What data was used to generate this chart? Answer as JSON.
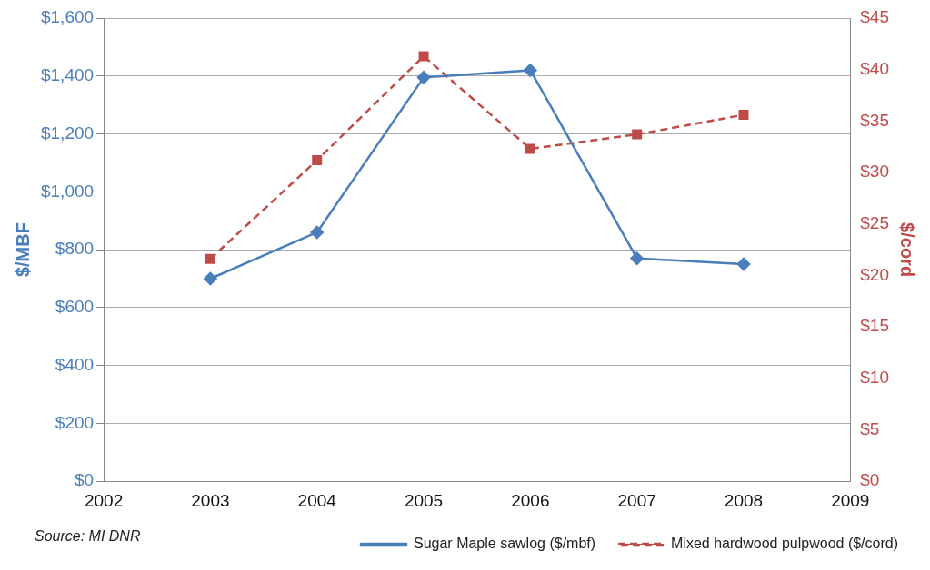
{
  "chart_data": {
    "type": "line",
    "ylabel": "$/MBF",
    "y2label": "$/cord",
    "x": [
      2003,
      2004,
      2005,
      2006,
      2007,
      2008
    ],
    "xlim": [
      2002,
      2009
    ],
    "xticks": [
      2002,
      2003,
      2004,
      2005,
      2006,
      2007,
      2008,
      2009
    ],
    "ylim": [
      0,
      1600
    ],
    "yticks": [
      {
        "value": 0,
        "label": "$0"
      },
      {
        "value": 200,
        "label": "$200"
      },
      {
        "value": 400,
        "label": "$400"
      },
      {
        "value": 600,
        "label": "$600"
      },
      {
        "value": 800,
        "label": "$800"
      },
      {
        "value": 1000,
        "label": "$1,000"
      },
      {
        "value": 1200,
        "label": "$1,200"
      },
      {
        "value": 1400,
        "label": "$1,400"
      },
      {
        "value": 1600,
        "label": "$1,600"
      }
    ],
    "y2lim": [
      0,
      45
    ],
    "y2ticks": [
      {
        "value": 0,
        "label": "$0"
      },
      {
        "value": 5,
        "label": "$5"
      },
      {
        "value": 10,
        "label": "$10"
      },
      {
        "value": 15,
        "label": "$15"
      },
      {
        "value": 20,
        "label": "$20"
      },
      {
        "value": 25,
        "label": "$25"
      },
      {
        "value": 30,
        "label": "$30"
      },
      {
        "value": 35,
        "label": "$35"
      },
      {
        "value": 40,
        "label": "$40"
      },
      {
        "value": 45,
        "label": "$45"
      }
    ],
    "series": [
      {
        "name": "Sugar Maple sawlog ($/mbf)",
        "color": "#4a7ebb",
        "values": [
          700,
          860,
          1395,
          1420,
          770,
          750
        ],
        "marker": "diamond",
        "line_style": "solid"
      },
      {
        "name": "Mixed hardwood pulpwood ($/cord)",
        "color": "#be4b48",
        "values": [
          21.6,
          31.2,
          41.3,
          32.3,
          33.7,
          35.6
        ],
        "axis": "y2",
        "marker": "square",
        "line_style": "dashed"
      }
    ],
    "grid": "y",
    "legend": "bottom",
    "annotations": [
      "Source: MI DNR"
    ]
  }
}
